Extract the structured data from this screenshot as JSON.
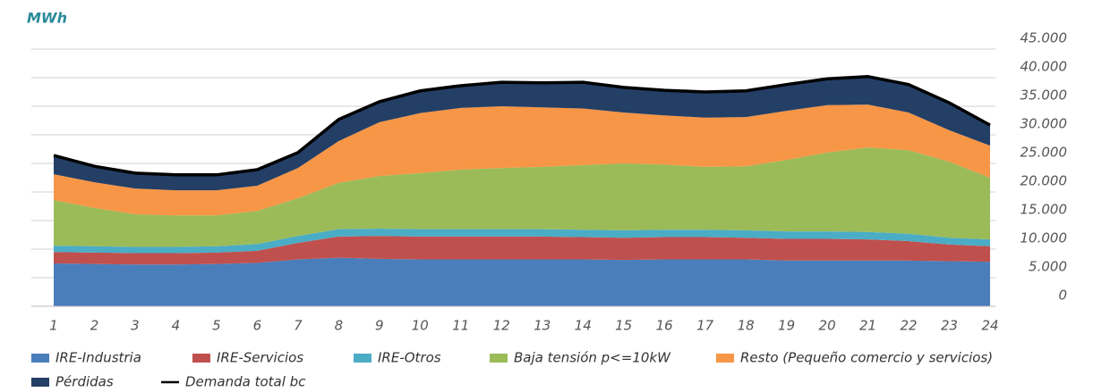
{
  "chart_data": {
    "type": "stacked_area",
    "ylabel": "MWh",
    "x": [
      1,
      2,
      3,
      4,
      5,
      6,
      7,
      8,
      9,
      10,
      11,
      12,
      13,
      14,
      15,
      16,
      17,
      18,
      19,
      20,
      21,
      22,
      23,
      24
    ],
    "xticks": [
      1,
      2,
      3,
      4,
      5,
      6,
      7,
      8,
      9,
      10,
      11,
      12,
      13,
      14,
      15,
      16,
      17,
      18,
      19,
      20,
      21,
      22,
      23,
      24
    ],
    "xlim": [
      1,
      24
    ],
    "ylim": [
      0,
      45000
    ],
    "yticks": [
      0,
      {
        "value": 5000,
        "label": "5.000"
      },
      {
        "value": 10000,
        "label": "10.000"
      },
      {
        "value": 15000,
        "label": "15.000"
      },
      {
        "value": 20000,
        "label": "20.000"
      },
      {
        "value": 25000,
        "label": "25.000"
      },
      {
        "value": 30000,
        "label": "30.000"
      },
      {
        "value": 35000,
        "label": "35.000"
      },
      {
        "value": 40000,
        "label": "40.000"
      },
      {
        "value": 45000,
        "label": "45.000"
      }
    ],
    "grid": true,
    "series": [
      {
        "name": "IRE-Industria",
        "color": "#4a7ebb",
        "values": [
          7500,
          7400,
          7300,
          7300,
          7400,
          7600,
          8200,
          8500,
          8300,
          8200,
          8200,
          8200,
          8200,
          8200,
          8100,
          8200,
          8200,
          8200,
          8000,
          8000,
          8000,
          8000,
          7900,
          7800
        ]
      },
      {
        "name": "IRE-Servicios",
        "color": "#c0504d",
        "values": [
          2000,
          2000,
          2000,
          2000,
          2000,
          2100,
          2900,
          3700,
          4000,
          4000,
          4000,
          4000,
          4000,
          3900,
          3900,
          3900,
          3900,
          3800,
          3800,
          3800,
          3700,
          3400,
          2900,
          2700
        ]
      },
      {
        "name": "IRE-Otros",
        "color": "#4bacc6",
        "values": [
          1100,
          1100,
          1100,
          1100,
          1100,
          1200,
          1200,
          1300,
          1300,
          1300,
          1300,
          1300,
          1300,
          1300,
          1300,
          1300,
          1300,
          1300,
          1300,
          1300,
          1300,
          1300,
          1200,
          1200
        ]
      },
      {
        "name": "Baja tensión p<=10kW",
        "color": "#9bbb59",
        "values": [
          8000,
          6700,
          5700,
          5500,
          5400,
          5800,
          6600,
          8100,
          9200,
          9800,
          10400,
          10700,
          10900,
          11300,
          11700,
          11400,
          11000,
          11200,
          12500,
          13800,
          14800,
          14600,
          13300,
          10800
        ]
      },
      {
        "name": "Resto (Pequeño comercio y servicios)",
        "color": "#f79646",
        "values": [
          4500,
          4500,
          4500,
          4400,
          4400,
          4400,
          5300,
          7300,
          9400,
          10500,
          10800,
          10800,
          10400,
          9900,
          8900,
          8600,
          8600,
          8600,
          8600,
          8300,
          7500,
          6600,
          5500,
          5600
        ]
      },
      {
        "name": "Pérdidas",
        "color": "#243f66",
        "values": [
          3300,
          2800,
          2700,
          2700,
          2700,
          2800,
          2700,
          3800,
          3600,
          3900,
          3900,
          4200,
          4300,
          4500,
          4400,
          4400,
          4500,
          4600,
          4600,
          4600,
          4900,
          4900,
          4800,
          3600
        ]
      }
    ],
    "lines": [
      {
        "name": "Demanda total bc",
        "color": "#000000",
        "values": [
          26400,
          24500,
          23300,
          23000,
          23000,
          23900,
          26900,
          32700,
          35800,
          37700,
          38600,
          39200,
          39100,
          39200,
          38300,
          37800,
          37500,
          37700,
          38800,
          39800,
          40200,
          38800,
          35600,
          31700
        ]
      }
    ]
  }
}
